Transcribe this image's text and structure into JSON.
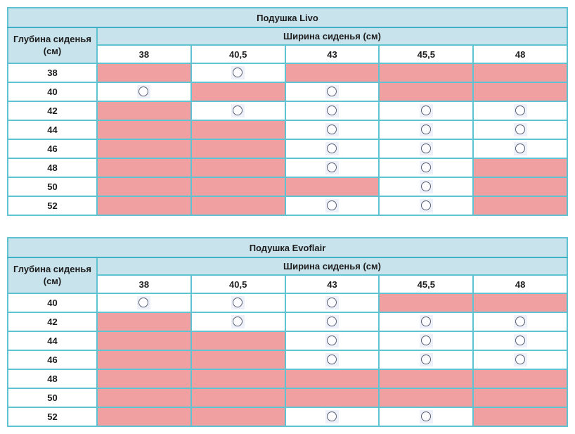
{
  "colors": {
    "header_bg": "#c9e3ed",
    "border_outer": "#3fb1c5",
    "border_inner": "#5fc3d2",
    "blocked_cell": "#f1a0a2",
    "circle_stroke": "#5a6070",
    "circle_box": "#eef1fa",
    "text": "#1c1c1c"
  },
  "tables": [
    {
      "title": "Подушка Livo",
      "depth_header": "Глубина сиденья (см)",
      "width_header": "Ширина сиденья (см)",
      "columns": [
        "38",
        "40,5",
        "43",
        "45,5",
        "48"
      ],
      "rows": [
        {
          "depth": "38",
          "cells": [
            "blocked",
            "available",
            "blocked",
            "blocked",
            "blocked"
          ]
        },
        {
          "depth": "40",
          "cells": [
            "available",
            "blocked",
            "available",
            "blocked",
            "blocked"
          ]
        },
        {
          "depth": "42",
          "cells": [
            "blocked",
            "available",
            "available",
            "available",
            "available"
          ]
        },
        {
          "depth": "44",
          "cells": [
            "blocked",
            "blocked",
            "available",
            "available",
            "available"
          ]
        },
        {
          "depth": "46",
          "cells": [
            "blocked",
            "blocked",
            "available",
            "available",
            "available"
          ]
        },
        {
          "depth": "48",
          "cells": [
            "blocked",
            "blocked",
            "available",
            "available",
            "blocked"
          ]
        },
        {
          "depth": "50",
          "cells": [
            "blocked",
            "blocked",
            "blocked",
            "available",
            "blocked"
          ]
        },
        {
          "depth": "52",
          "cells": [
            "blocked",
            "blocked",
            "available",
            "available",
            "blocked"
          ]
        }
      ]
    },
    {
      "title": "Подушка Evoflair",
      "depth_header": "Глубина сиденья (см)",
      "width_header": "Ширина сиденья (см)",
      "columns": [
        "38",
        "40,5",
        "43",
        "45,5",
        "48"
      ],
      "rows": [
        {
          "depth": "40",
          "cells": [
            "available",
            "available",
            "available",
            "blocked",
            "blocked"
          ]
        },
        {
          "depth": "42",
          "cells": [
            "blocked",
            "available",
            "available",
            "available",
            "available"
          ]
        },
        {
          "depth": "44",
          "cells": [
            "blocked",
            "blocked",
            "available",
            "available",
            "available"
          ]
        },
        {
          "depth": "46",
          "cells": [
            "blocked",
            "blocked",
            "available",
            "available",
            "available"
          ]
        },
        {
          "depth": "48",
          "cells": [
            "blocked",
            "blocked",
            "blocked",
            "blocked",
            "blocked"
          ]
        },
        {
          "depth": "50",
          "cells": [
            "blocked",
            "blocked",
            "blocked",
            "blocked",
            "blocked"
          ]
        },
        {
          "depth": "52",
          "cells": [
            "blocked",
            "blocked",
            "available",
            "available",
            "blocked"
          ]
        }
      ]
    }
  ]
}
